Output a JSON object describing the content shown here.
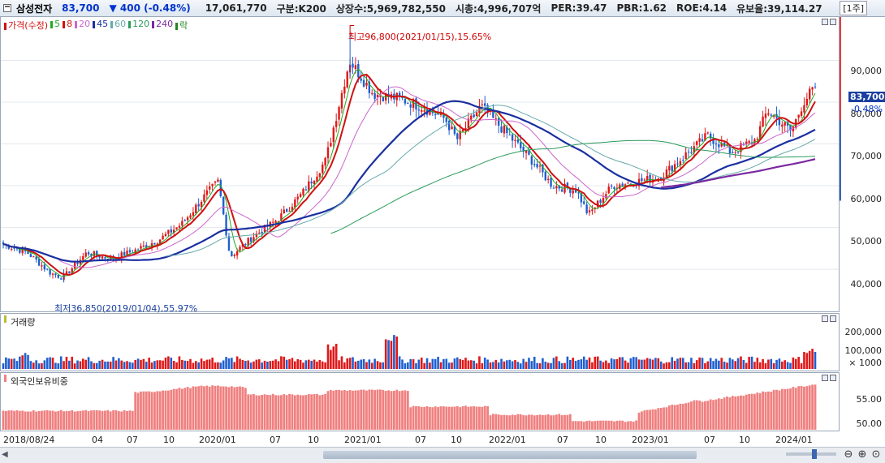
{
  "header": {
    "stock_name": "삼성전자",
    "price": "83,700",
    "change": "▼ 400 (-0.48%)",
    "volume": "17,061,770",
    "category": "구분:K200",
    "listed_shares": "상장수:5,969,782,550",
    "market_cap": "시총:4,996,707억",
    "per": "PER:39.47",
    "pbr": "PBR:1.62",
    "roe": "ROE:4.14",
    "float_ratio": "유보율:39,114.27",
    "period": "[1주]"
  },
  "price_panel": {
    "legend": [
      {
        "label": "가격(수정)",
        "color": "#d01010"
      },
      {
        "label": "5",
        "color": "#22aa22"
      },
      {
        "label": "8",
        "color": "#d01010"
      },
      {
        "label": "20",
        "color": "#cc66cc"
      },
      {
        "label": "45",
        "color": "#1a2fa0"
      },
      {
        "label": "60",
        "color": "#66aaaa"
      },
      {
        "label": "120",
        "color": "#2a9a5a"
      },
      {
        "label": "240",
        "color": "#7a2aa0"
      },
      {
        "label": "락",
        "color": "#228822"
      }
    ],
    "y_ticks": [
      "90,000",
      "80,000",
      "70,000",
      "60,000",
      "50,000",
      "40,000"
    ],
    "current_price_tag": "83,700",
    "current_change_tag": "-0.48%",
    "high_annotation": "최고96,800(2021/01/15),15.65%",
    "low_annotation": "최저36,850(2019/01/04),55.97%"
  },
  "volume_panel": {
    "legend": "거래량",
    "y_ticks": [
      "200,000",
      "100,000",
      "× 1000"
    ]
  },
  "foreign_panel": {
    "legend": "외국인보유비중",
    "y_ticks": [
      "55.00",
      "50.00"
    ]
  },
  "x_axis": {
    "labels": [
      "2018/08/24",
      "04",
      "07",
      "10",
      "2020/01",
      "07",
      "10",
      "2021/01",
      "07",
      "10",
      "2022/01",
      "07",
      "10",
      "2023/01",
      "07",
      "10",
      "2024/01"
    ]
  },
  "colors": {
    "up": "#e01818",
    "down": "#1f5fd0",
    "foreign_bar": "#f08080"
  },
  "chart_data": {
    "type": "candlestick",
    "interval": "weekly",
    "ylim": [
      34000,
      100000
    ],
    "high": 96800,
    "low": 36850,
    "last": 83700,
    "price_path": [
      [
        "2018/08",
        46000
      ],
      [
        "2018/10",
        44000
      ],
      [
        "2018/12",
        39000
      ],
      [
        "2019/01",
        38000
      ],
      [
        "2019/03",
        44000
      ],
      [
        "2019/05",
        42500
      ],
      [
        "2019/07",
        44500
      ],
      [
        "2019/09",
        47000
      ],
      [
        "2019/11",
        51000
      ],
      [
        "2020/01",
        58000
      ],
      [
        "2020/02",
        61000
      ],
      [
        "2020/03",
        43000
      ],
      [
        "2020/05",
        48000
      ],
      [
        "2020/07",
        52000
      ],
      [
        "2020/09",
        58000
      ],
      [
        "2020/11",
        66000
      ],
      [
        "2020/12",
        78000
      ],
      [
        "2021/01",
        90000
      ],
      [
        "2021/03",
        82000
      ],
      [
        "2021/05",
        81000
      ],
      [
        "2021/07",
        79000
      ],
      [
        "2021/09",
        76000
      ],
      [
        "2021/10",
        71000
      ],
      [
        "2021/12",
        79000
      ],
      [
        "2022/02",
        73000
      ],
      [
        "2022/04",
        67000
      ],
      [
        "2022/06",
        60000
      ],
      [
        "2022/08",
        59000
      ],
      [
        "2022/09",
        53000
      ],
      [
        "2022/11",
        60000
      ],
      [
        "2023/01",
        61000
      ],
      [
        "2023/03",
        62000
      ],
      [
        "2023/05",
        67000
      ],
      [
        "2023/07",
        72000
      ],
      [
        "2023/09",
        68000
      ],
      [
        "2023/11",
        71000
      ],
      [
        "2023/12",
        78000
      ],
      [
        "2024/02",
        73000
      ],
      [
        "2024/03",
        80000
      ],
      [
        "2024/04",
        83700
      ]
    ],
    "volume_ylim": [
      0,
      250000
    ],
    "foreign_ylim": [
      48,
      57
    ]
  }
}
